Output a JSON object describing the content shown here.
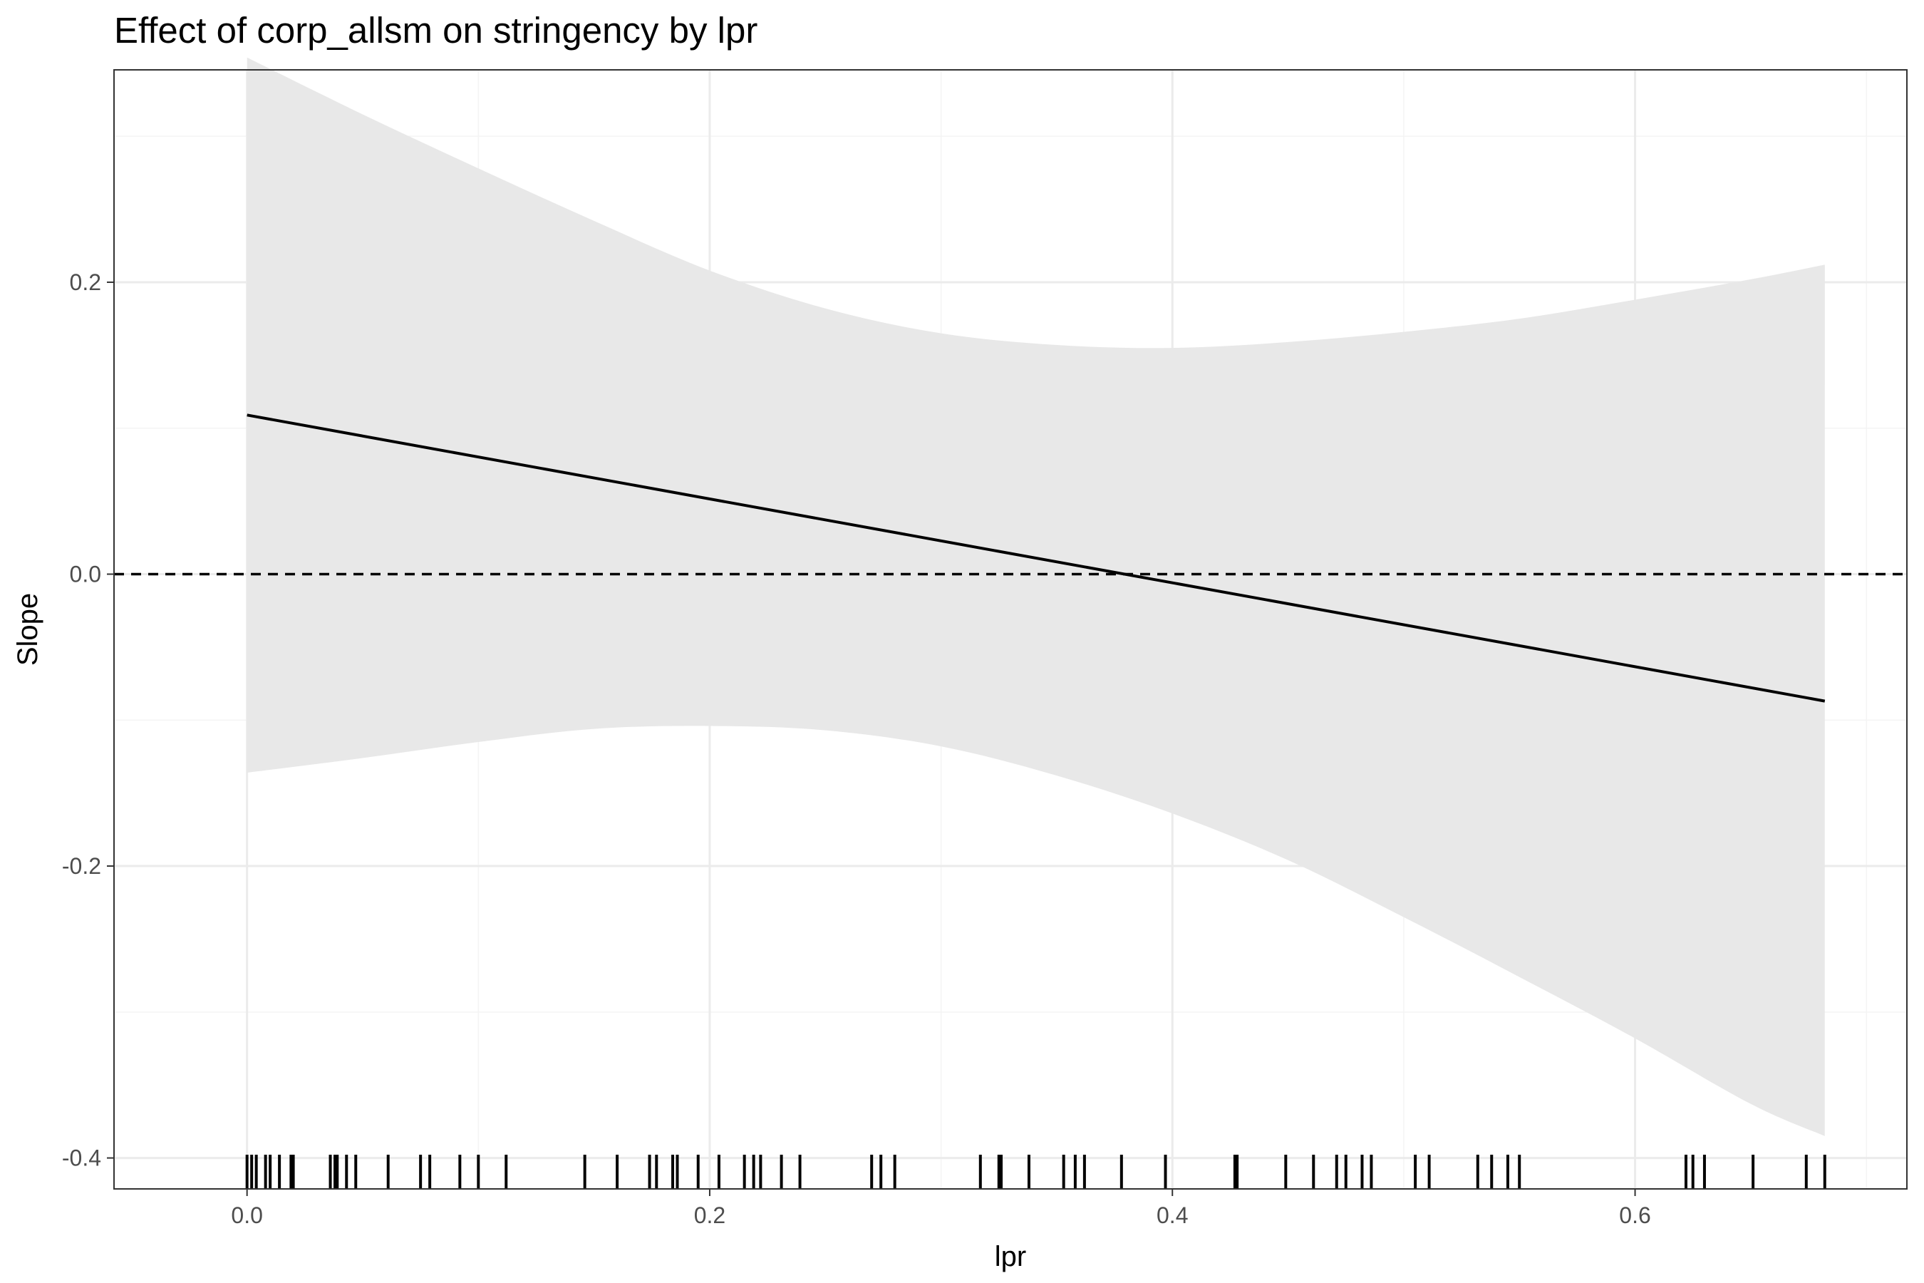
{
  "chart_data": {
    "type": "line",
    "title": "Effect of corp_allsm on stringency by lpr",
    "xlabel": "lpr",
    "ylabel": "Slope",
    "xlim": [
      -0.0575,
      0.7175
    ],
    "ylim": [
      -0.4212,
      0.3455
    ],
    "x_ticks": [
      0.0,
      0.2,
      0.4,
      0.6
    ],
    "x_tick_labels": [
      "0.0",
      "0.2",
      "0.4",
      "0.6"
    ],
    "x_minor_ticks": [
      0.1,
      0.3,
      0.5,
      0.7
    ],
    "y_ticks": [
      -0.4,
      -0.2,
      0.0,
      0.2
    ],
    "y_tick_labels": [
      "-0.4",
      "-0.2",
      "0.0",
      "0.2"
    ],
    "y_minor_ticks": [
      -0.3,
      -0.1,
      0.1,
      0.3
    ],
    "grid": true,
    "legend": "none",
    "reference_line": {
      "y": 0.0,
      "style": "dashed"
    },
    "colors": {
      "line": "#000000",
      "ribbon": "#e8e8e8",
      "grid_major": "#ebebeb",
      "grid_minor": "#f4f4f4",
      "panel_border": "#333333",
      "tick_label": "#4d4d4d"
    },
    "series": [
      {
        "type": "line",
        "x": [
          0.0,
          0.682
        ],
        "y": [
          0.109,
          -0.087
        ]
      },
      {
        "type": "ribbon",
        "x": [
          0.0,
          0.05,
          0.1,
          0.15,
          0.2,
          0.25,
          0.3,
          0.35,
          0.4,
          0.45,
          0.5,
          0.55,
          0.6,
          0.65,
          0.682
        ],
        "upper": [
          0.354,
          0.315,
          0.278,
          0.242,
          0.208,
          0.182,
          0.165,
          0.157,
          0.155,
          0.159,
          0.166,
          0.175,
          0.188,
          0.202,
          0.212
        ],
        "lower": [
          -0.136,
          -0.126,
          -0.115,
          -0.106,
          -0.104,
          -0.107,
          -0.118,
          -0.138,
          -0.164,
          -0.196,
          -0.235,
          -0.276,
          -0.318,
          -0.363,
          -0.385
        ]
      }
    ],
    "rug": {
      "axis": "x",
      "x": [
        0.0,
        0.002,
        0.004,
        0.008,
        0.01,
        0.014,
        0.019,
        0.02,
        0.036,
        0.038,
        0.039,
        0.043,
        0.047,
        0.061,
        0.075,
        0.079,
        0.092,
        0.1,
        0.112,
        0.146,
        0.16,
        0.174,
        0.177,
        0.184,
        0.186,
        0.195,
        0.204,
        0.215,
        0.219,
        0.222,
        0.231,
        0.239,
        0.27,
        0.274,
        0.28,
        0.317,
        0.325,
        0.326,
        0.338,
        0.353,
        0.358,
        0.362,
        0.378,
        0.397,
        0.427,
        0.428,
        0.449,
        0.461,
        0.471,
        0.475,
        0.482,
        0.486,
        0.505,
        0.511,
        0.532,
        0.538,
        0.545,
        0.55,
        0.622,
        0.625,
        0.63,
        0.651,
        0.674,
        0.682
      ]
    }
  }
}
